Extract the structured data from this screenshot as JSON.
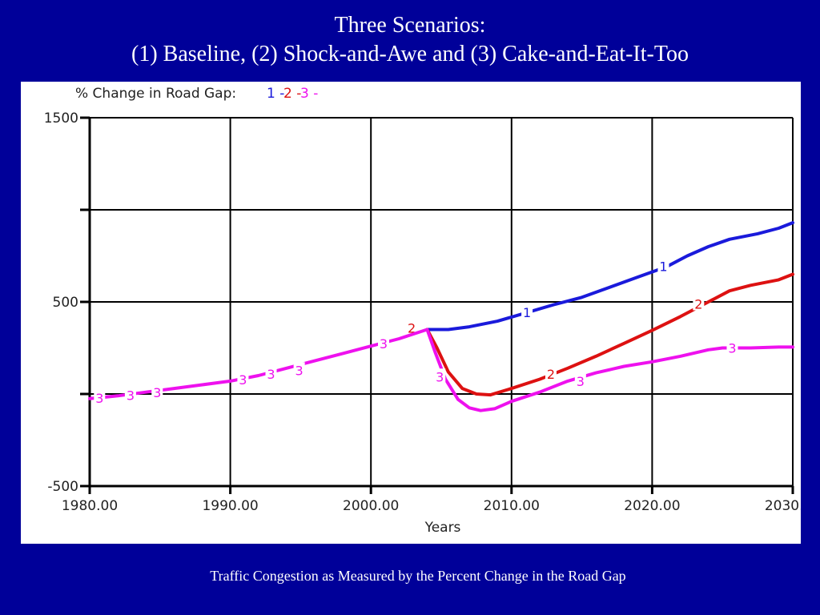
{
  "slide": {
    "title_line1": "Three Scenarios:",
    "title_line2": "(1) Baseline, (2) Shock-and-Awe and (3) Cake-and-Eat-It-Too",
    "caption": "Traffic Congestion as Measured by the Percent Change in the Road Gap"
  },
  "chart_data": {
    "type": "line",
    "title": "% Change in Road Gap:",
    "xlabel": "Years",
    "ylabel": "",
    "xlim": [
      1980,
      2030
    ],
    "ylim": [
      -500,
      1500
    ],
    "x_tick_labels": [
      "1980.00",
      "1990.00",
      "2000.00",
      "2010.00",
      "2020.00",
      "2030.00"
    ],
    "x_ticks": [
      1980,
      1990,
      2000,
      2010,
      2020,
      2030
    ],
    "y_tick_labels": [
      {
        "value": 1500,
        "label": "1500"
      },
      {
        "value": 500,
        "label": "500"
      },
      {
        "value": -500,
        "label": "-500"
      }
    ],
    "y_ticks": [
      1500,
      1000,
      500,
      0,
      -500
    ],
    "grid": true,
    "legend_position": "top-left",
    "series": [
      {
        "name": "1",
        "color": "#1a1adb",
        "points": [
          [
            2004,
            350
          ],
          [
            2005.5,
            350
          ],
          [
            2007,
            365
          ],
          [
            2009,
            395
          ],
          [
            2011,
            440
          ],
          [
            2013,
            485
          ],
          [
            2015,
            525
          ],
          [
            2017,
            580
          ],
          [
            2019,
            635
          ],
          [
            2021,
            690
          ],
          [
            2022.5,
            750
          ],
          [
            2024,
            800
          ],
          [
            2025.5,
            840
          ],
          [
            2027.5,
            870
          ],
          [
            2029,
            900
          ],
          [
            2030,
            930
          ]
        ],
        "markers": [
          [
            2011.1,
            440
          ],
          [
            2020.8,
            690
          ]
        ]
      },
      {
        "name": "2",
        "color": "#dd1111",
        "points": [
          [
            2004,
            350
          ],
          [
            2004.7,
            250
          ],
          [
            2005.5,
            120
          ],
          [
            2006.5,
            30
          ],
          [
            2007.5,
            0
          ],
          [
            2008.5,
            -5
          ],
          [
            2010,
            30
          ],
          [
            2012,
            80
          ],
          [
            2014,
            140
          ],
          [
            2016,
            205
          ],
          [
            2018,
            275
          ],
          [
            2020,
            345
          ],
          [
            2022,
            420
          ],
          [
            2024,
            500
          ],
          [
            2025.5,
            560
          ],
          [
            2027,
            590
          ],
          [
            2029,
            620
          ],
          [
            2030,
            650
          ]
        ],
        "markers": [
          [
            2002.9,
            355
          ],
          [
            2012.8,
            105
          ],
          [
            2023.3,
            485
          ]
        ]
      },
      {
        "name": "3",
        "color": "#ee11ee",
        "points": [
          [
            1980,
            -25
          ],
          [
            1982,
            -10
          ],
          [
            1984,
            10
          ],
          [
            1986,
            30
          ],
          [
            1988,
            50
          ],
          [
            1990,
            70
          ],
          [
            1992,
            100
          ],
          [
            1994,
            140
          ],
          [
            1996,
            180
          ],
          [
            1998,
            220
          ],
          [
            2000,
            260
          ],
          [
            2002,
            300
          ],
          [
            2004,
            350
          ],
          [
            2004.6,
            220
          ],
          [
            2005.3,
            80
          ],
          [
            2006.2,
            -30
          ],
          [
            2007,
            -75
          ],
          [
            2007.8,
            -90
          ],
          [
            2008.8,
            -80
          ],
          [
            2010,
            -40
          ],
          [
            2012,
            10
          ],
          [
            2014,
            70
          ],
          [
            2016,
            115
          ],
          [
            2018,
            150
          ],
          [
            2020,
            175
          ],
          [
            2022,
            205
          ],
          [
            2024,
            240
          ],
          [
            2025,
            250
          ],
          [
            2027,
            250
          ],
          [
            2029,
            255
          ],
          [
            2030,
            255
          ]
        ],
        "markers": [
          [
            1980.7,
            -25
          ],
          [
            1982.9,
            -10
          ],
          [
            1984.8,
            5
          ],
          [
            1990.9,
            75
          ],
          [
            1992.9,
            105
          ],
          [
            1994.9,
            125
          ],
          [
            2000.9,
            270
          ],
          [
            2004.9,
            90
          ],
          [
            2014.9,
            65
          ],
          [
            2025.7,
            245
          ]
        ]
      }
    ]
  }
}
